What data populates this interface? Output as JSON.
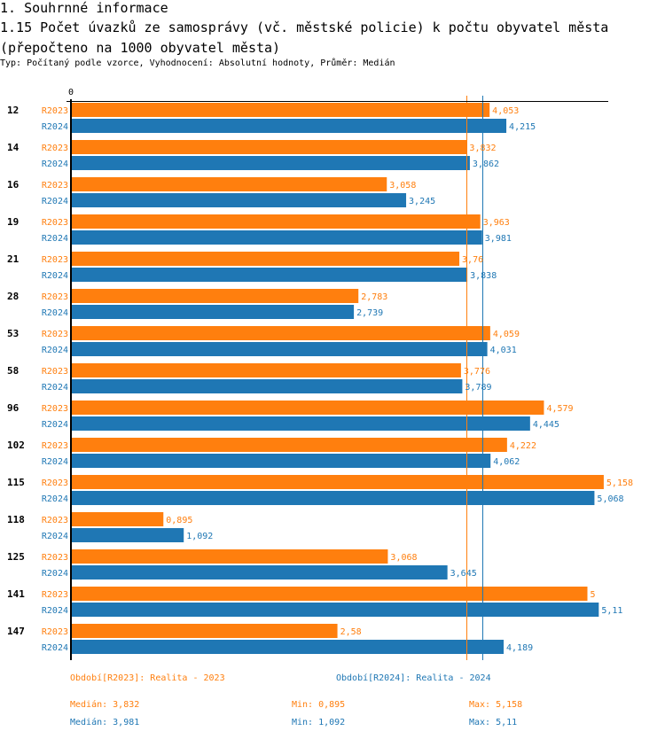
{
  "header": {
    "section_title": "1. Souhrnné informace",
    "chart_title": "1.15 Počet úvazků ze samosprávy (vč. městské policie) k počtu obyvatel města (přepočteno na 1000 obyvatel města)",
    "subtitle": "Typ: Počítaný podle vzorce, Vyhodnocení: Absolutní hodnoty, Průměr: Medián"
  },
  "colors": {
    "R2023": "#ff7f0e",
    "R2024": "#1f77b4",
    "axis": "#000000"
  },
  "chart_data": {
    "type": "bar",
    "orientation": "horizontal",
    "title": "1.15 Počet úvazků ze samosprávy (vč. městské policie) k počtu obyvatel města (přepočteno na 1000 obyvatel města)",
    "xlabel": "",
    "ylabel": "",
    "axis_tick_labels": [
      "0"
    ],
    "xlim": [
      0,
      5.35
    ],
    "grid": false,
    "categories": [
      "12",
      "14",
      "16",
      "19",
      "21",
      "28",
      "53",
      "58",
      "96",
      "102",
      "115",
      "118",
      "125",
      "141",
      "147"
    ],
    "series": [
      {
        "name": "R2023",
        "color": "#ff7f0e",
        "values": [
          4.053,
          3.832,
          3.058,
          3.963,
          3.76,
          2.783,
          4.059,
          3.776,
          4.579,
          4.222,
          5.158,
          0.895,
          3.068,
          5,
          2.58
        ],
        "labels": [
          "4,053",
          "3,832",
          "3,058",
          "3,963",
          "3,76",
          "2,783",
          "4,059",
          "3,776",
          "4,579",
          "4,222",
          "5,158",
          "0,895",
          "3,068",
          "5",
          "2,58"
        ]
      },
      {
        "name": "R2024",
        "color": "#1f77b4",
        "values": [
          4.215,
          3.862,
          3.245,
          3.981,
          3.838,
          2.739,
          4.031,
          3.789,
          4.445,
          4.062,
          5.068,
          1.092,
          3.645,
          5.11,
          4.189
        ],
        "labels": [
          "4,215",
          "3,862",
          "3,245",
          "3,981",
          "3,838",
          "2,739",
          "4,031",
          "3,789",
          "4,445",
          "4,062",
          "5,068",
          "1,092",
          "3,645",
          "5,11",
          "4,189"
        ]
      }
    ],
    "reference_lines": [
      {
        "series": "R2023",
        "type": "median",
        "value": 3.832
      },
      {
        "series": "R2024",
        "type": "median",
        "value": 3.981
      }
    ]
  },
  "legend": {
    "R2023": "Období[R2023]: Realita - 2023",
    "R2024": "Období[R2024]: Realita - 2024"
  },
  "stats": {
    "R2023": {
      "median": "Medián: 3,832",
      "min": "Min: 0,895",
      "max": "Max: 5,158"
    },
    "R2024": {
      "median": "Medián: 3,981",
      "min": "Min: 1,092",
      "max": "Max: 5,11"
    }
  }
}
